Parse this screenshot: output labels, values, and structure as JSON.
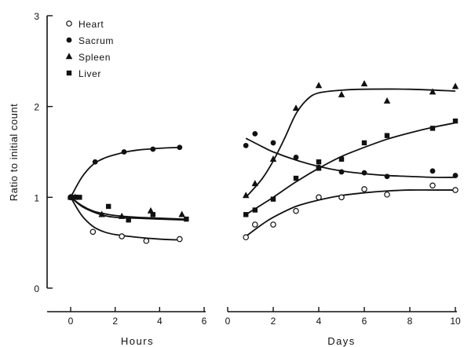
{
  "chart_data": [
    {
      "type": "scatter",
      "panel": "hours",
      "xlabel": "Hours",
      "ylabel": "Ratio to initial count",
      "xlim": [
        0,
        6
      ],
      "ylim": [
        0,
        3
      ],
      "xticks": [
        "0",
        "2",
        "4",
        "6"
      ],
      "yticks": [
        "0",
        "1",
        "2",
        "3"
      ],
      "grid": false,
      "legend_position": "top-left",
      "series": [
        {
          "name": "Heart",
          "marker": "open-circle",
          "points": [
            [
              0,
              1.0
            ],
            [
              1,
              0.62
            ],
            [
              2.3,
              0.57
            ],
            [
              3.4,
              0.52
            ],
            [
              4.9,
              0.54
            ]
          ],
          "curve": [
            [
              0,
              1.0
            ],
            [
              0.5,
              0.8
            ],
            [
              1,
              0.68
            ],
            [
              1.5,
              0.62
            ],
            [
              2,
              0.59
            ],
            [
              3,
              0.56
            ],
            [
              4,
              0.54
            ],
            [
              5,
              0.53
            ]
          ]
        },
        {
          "name": "Sacrum",
          "marker": "filled-circle",
          "points": [
            [
              0,
              1.0
            ],
            [
              0.3,
              1.0
            ],
            [
              1.1,
              1.39
            ],
            [
              2.4,
              1.5
            ],
            [
              3.7,
              1.53
            ],
            [
              4.9,
              1.55
            ]
          ],
          "curve": [
            [
              0,
              1.0
            ],
            [
              0.5,
              1.22
            ],
            [
              1,
              1.36
            ],
            [
              1.5,
              1.43
            ],
            [
              2,
              1.47
            ],
            [
              2.5,
              1.5
            ],
            [
              3,
              1.52
            ],
            [
              4,
              1.54
            ],
            [
              5,
              1.55
            ]
          ]
        },
        {
          "name": "Spleen",
          "marker": "filled-triangle",
          "points": [
            [
              0,
              1.0
            ],
            [
              0.2,
              1.0
            ],
            [
              1.4,
              0.81
            ],
            [
              2.3,
              0.79
            ],
            [
              3.6,
              0.85
            ],
            [
              5.0,
              0.81
            ]
          ],
          "curve": [
            [
              0,
              1.0
            ],
            [
              0.5,
              0.91
            ],
            [
              1,
              0.85
            ],
            [
              1.5,
              0.82
            ],
            [
              2,
              0.8
            ],
            [
              3,
              0.78
            ],
            [
              4,
              0.77
            ],
            [
              5.1,
              0.76
            ]
          ]
        },
        {
          "name": "Liver",
          "marker": "filled-square",
          "points": [
            [
              0.2,
              1.0
            ],
            [
              0.4,
              1.0
            ],
            [
              1.7,
              0.9
            ],
            [
              2.6,
              0.75
            ],
            [
              3.7,
              0.81
            ],
            [
              5.2,
              0.76
            ]
          ],
          "curve": [
            [
              0,
              1.0
            ],
            [
              0.5,
              0.9
            ],
            [
              1,
              0.84
            ],
            [
              1.5,
              0.8
            ],
            [
              2,
              0.78
            ],
            [
              3,
              0.77
            ],
            [
              4,
              0.76
            ],
            [
              5.2,
              0.75
            ]
          ]
        }
      ]
    },
    {
      "type": "scatter",
      "panel": "days",
      "xlabel": "Days",
      "ylabel": "",
      "xlim": [
        0,
        10
      ],
      "ylim": [
        0,
        3
      ],
      "xticks": [
        "0",
        "2",
        "4",
        "6",
        "8",
        "10"
      ],
      "grid": false,
      "series": [
        {
          "name": "Heart",
          "marker": "open-circle",
          "points": [
            [
              0.8,
              0.56
            ],
            [
              1.2,
              0.7
            ],
            [
              2,
              0.7
            ],
            [
              3,
              0.85
            ],
            [
              4,
              1.0
            ],
            [
              5,
              1.0
            ],
            [
              6,
              1.09
            ],
            [
              7,
              1.03
            ],
            [
              9,
              1.13
            ],
            [
              10,
              1.08
            ]
          ],
          "curve": [
            [
              0.8,
              0.57
            ],
            [
              1.5,
              0.7
            ],
            [
              2,
              0.78
            ],
            [
              3,
              0.9
            ],
            [
              4,
              0.97
            ],
            [
              5,
              1.02
            ],
            [
              6,
              1.05
            ],
            [
              7,
              1.07
            ],
            [
              8,
              1.08
            ],
            [
              9,
              1.08
            ],
            [
              10,
              1.08
            ]
          ]
        },
        {
          "name": "Sacrum",
          "marker": "filled-circle",
          "points": [
            [
              0.8,
              1.57
            ],
            [
              1.2,
              1.7
            ],
            [
              2,
              1.6
            ],
            [
              3,
              1.44
            ],
            [
              4,
              1.33
            ],
            [
              5,
              1.28
            ],
            [
              6,
              1.27
            ],
            [
              7,
              1.23
            ],
            [
              9,
              1.29
            ],
            [
              10,
              1.24
            ]
          ],
          "curve": [
            [
              0.8,
              1.65
            ],
            [
              1.5,
              1.56
            ],
            [
              2,
              1.5
            ],
            [
              3,
              1.41
            ],
            [
              4,
              1.34
            ],
            [
              5,
              1.29
            ],
            [
              6,
              1.26
            ],
            [
              7,
              1.24
            ],
            [
              8,
              1.23
            ],
            [
              9,
              1.22
            ],
            [
              10,
              1.22
            ]
          ]
        },
        {
          "name": "Spleen",
          "marker": "filled-triangle",
          "points": [
            [
              0.8,
              1.02
            ],
            [
              1.2,
              1.15
            ],
            [
              2,
              1.42
            ],
            [
              3,
              1.98
            ],
            [
              4,
              2.23
            ],
            [
              5,
              2.13
            ],
            [
              6,
              2.25
            ],
            [
              7,
              2.06
            ],
            [
              9,
              2.16
            ],
            [
              10,
              2.22
            ]
          ],
          "curve": [
            [
              0.8,
              1.0
            ],
            [
              1.5,
              1.2
            ],
            [
              2,
              1.4
            ],
            [
              2.5,
              1.65
            ],
            [
              3,
              1.92
            ],
            [
              3.5,
              2.08
            ],
            [
              4,
              2.15
            ],
            [
              5,
              2.18
            ],
            [
              6,
              2.19
            ],
            [
              8,
              2.19
            ],
            [
              10,
              2.17
            ]
          ]
        },
        {
          "name": "Liver",
          "marker": "filled-square",
          "points": [
            [
              0.8,
              0.81
            ],
            [
              1.2,
              0.86
            ],
            [
              2,
              0.98
            ],
            [
              3,
              1.21
            ],
            [
              4,
              1.32
            ],
            [
              4,
              1.39
            ],
            [
              5,
              1.42
            ],
            [
              6,
              1.6
            ],
            [
              7,
              1.68
            ],
            [
              9,
              1.76
            ],
            [
              10,
              1.84
            ]
          ],
          "curve": [
            [
              0.8,
              0.81
            ],
            [
              1.5,
              0.92
            ],
            [
              2,
              1.0
            ],
            [
              3,
              1.17
            ],
            [
              4,
              1.32
            ],
            [
              5,
              1.45
            ],
            [
              6,
              1.55
            ],
            [
              7,
              1.64
            ],
            [
              8,
              1.71
            ],
            [
              9,
              1.77
            ],
            [
              10,
              1.82
            ]
          ]
        }
      ]
    }
  ]
}
